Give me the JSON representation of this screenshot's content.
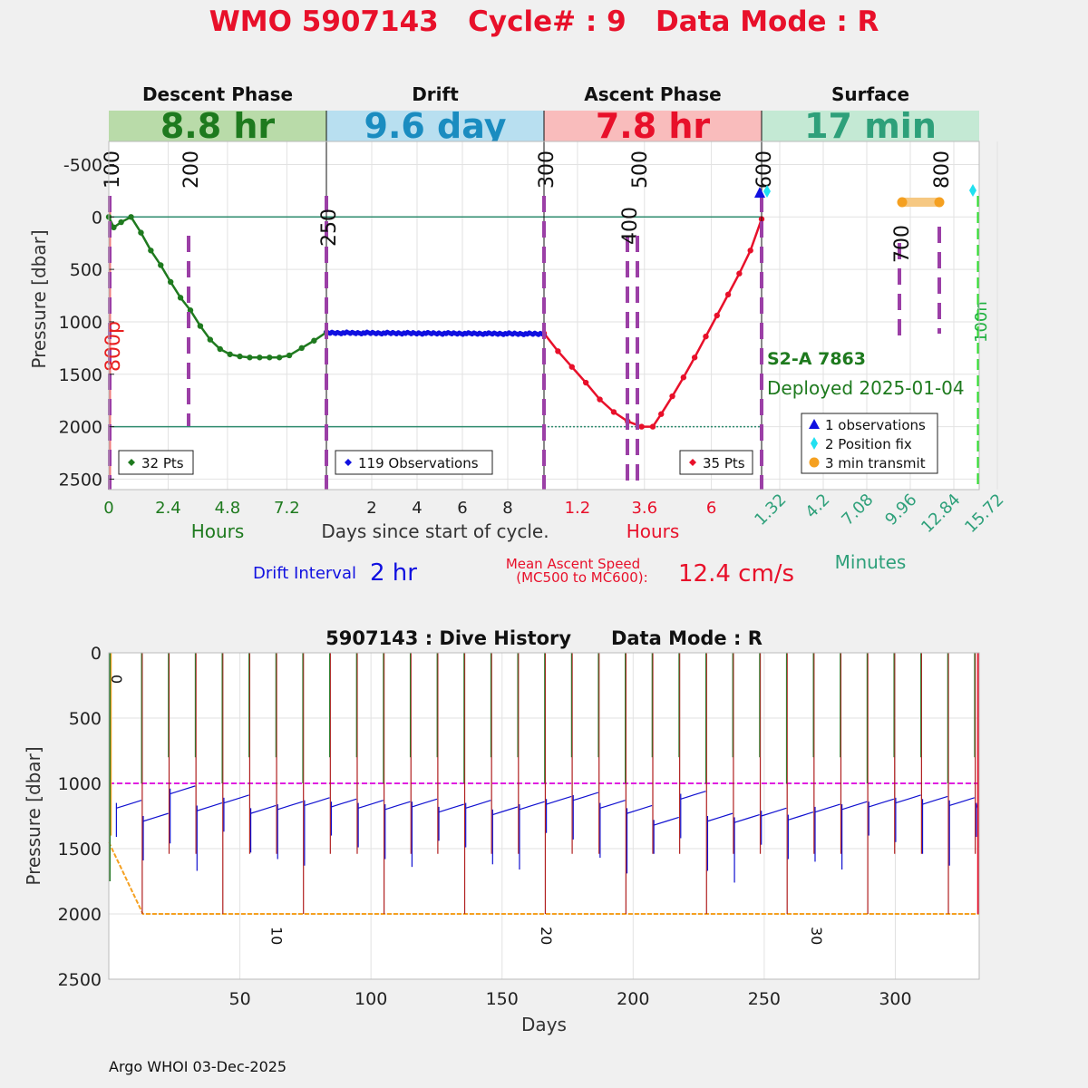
{
  "header": {
    "title": "WMO 5907143   Cycle# : 9   Data Mode : R"
  },
  "phases": [
    {
      "name": "Descent Phase",
      "duration": "8.8 hr",
      "bg": "#b9dba9",
      "fg": "#1e7a1e"
    },
    {
      "name": "Drift",
      "duration": "9.6 day",
      "bg": "#b8dff0",
      "fg": "#1a8cc0"
    },
    {
      "name": "Ascent Phase",
      "duration": "7.8 hr",
      "bg": "#f9bcbc",
      "fg": "#e8102a"
    },
    {
      "name": "Surface",
      "duration": "17 min",
      "bg": "#c4e9d4",
      "fg": "#2ea07a"
    }
  ],
  "top_chart": {
    "ylabel": "Pressure [dbar]",
    "yticks": [
      "-500",
      "0",
      "500",
      "1000",
      "1500",
      "2000",
      "2500"
    ],
    "ylim": [
      -720,
      2600
    ],
    "descent_xticks": [
      "0",
      "2.4",
      "4.8",
      "7.2"
    ],
    "drift_xticks": [
      "2",
      "4",
      "6",
      "8"
    ],
    "ascent_xticks": [
      "1.2",
      "3.6",
      "6"
    ],
    "surface_xticks": [
      "1.32",
      "4.2",
      "7.08",
      "9.96",
      "12.84",
      "15.72"
    ],
    "descent_xlabel": "Hours",
    "drift_xlabel": "Days since start of cycle.",
    "ascent_xlabel": "Hours",
    "surface_xlabel": "Minutes",
    "mc_labels": [
      "100",
      "200",
      "250",
      "300",
      "400",
      "500",
      "600",
      "700",
      "800"
    ],
    "side_label_left": "800p",
    "side_label_right": "100n",
    "descent_legend": "32 Pts",
    "drift_legend": "119 Observations",
    "ascent_legend": "35 Pts",
    "float_id": "S2-A 7863",
    "deployed": "Deployed 2025-01-04",
    "surface_legend": [
      "1 observations",
      "2 Position fix",
      "3 min transmit"
    ],
    "drift_interval_label": "Drift Interval",
    "drift_interval_value": "2 hr",
    "ascent_speed_label_1": "Mean Ascent Speed",
    "ascent_speed_label_2": "(MC500 to MC600):",
    "ascent_speed_value": "12.4 cm/s"
  },
  "chart_data": [
    {
      "type": "line",
      "title": "WMO 5907143   Cycle# : 9   Data Mode : R",
      "ylabel": "Pressure [dbar]",
      "ylim": [
        -720,
        2600
      ],
      "series": [
        {
          "name": "Descent",
          "x_unit": "hours",
          "color": "#1f7a1f",
          "x": [
            0,
            0.2,
            0.5,
            0.9,
            1.3,
            1.7,
            2.1,
            2.5,
            2.9,
            3.3,
            3.7,
            4.1,
            4.5,
            4.9,
            5.3,
            5.7,
            6.1,
            6.5,
            6.9,
            7.3,
            7.8,
            8.3,
            8.8
          ],
          "y": [
            0,
            100,
            50,
            0,
            150,
            320,
            460,
            620,
            770,
            890,
            1040,
            1170,
            1260,
            1310,
            1330,
            1340,
            1340,
            1340,
            1340,
            1320,
            1250,
            1180,
            1100
          ]
        },
        {
          "name": "Drift",
          "x_unit": "days",
          "color": "#1010e0",
          "x": [
            0,
            9.6
          ],
          "y": [
            1105,
            1115
          ]
        },
        {
          "name": "Ascent",
          "x_unit": "hours",
          "color": "#e8102a",
          "x": [
            0,
            0.5,
            1.0,
            1.5,
            2.0,
            2.5,
            3.0,
            3.5,
            3.9,
            4.2,
            4.6,
            5.0,
            5.4,
            5.8,
            6.2,
            6.6,
            7.0,
            7.4,
            7.8
          ],
          "y": [
            1110,
            1280,
            1430,
            1580,
            1740,
            1860,
            1950,
            2000,
            2000,
            1880,
            1710,
            1530,
            1340,
            1140,
            940,
            740,
            540,
            320,
            20
          ]
        }
      ],
      "reference_lines": [
        0,
        2000
      ]
    },
    {
      "type": "line",
      "title": "5907143 : Dive History      Data Mode : R",
      "xlabel": "Days",
      "ylabel": "Pressure [dbar]",
      "xlim": [
        0,
        332
      ],
      "ylim": [
        0,
        2500
      ],
      "xticks": [
        50,
        100,
        150,
        200,
        250,
        300
      ],
      "yticks": [
        0,
        500,
        1000,
        1500,
        2000,
        2500
      ],
      "reference_line": 1000,
      "park_pressures": [
        1150,
        1250,
        1040,
        1170,
        1110,
        1190,
        1160,
        1130,
        1140,
        1150,
        1160,
        1140,
        1180,
        1150,
        1200,
        1160,
        1120,
        1090,
        1150,
        1190,
        1280,
        1080,
        1250,
        1260,
        1210,
        1240,
        1180,
        1160,
        1140,
        1110,
        1120,
        1130,
        1150,
        1110,
        1120,
        1090
      ],
      "cycle_labels": [
        "0",
        "10",
        "20",
        "30"
      ],
      "cycle_label_days": [
        0,
        62,
        165,
        268
      ]
    }
  ],
  "footer": {
    "text": "Argo WHOI 03-Dec-2025"
  }
}
